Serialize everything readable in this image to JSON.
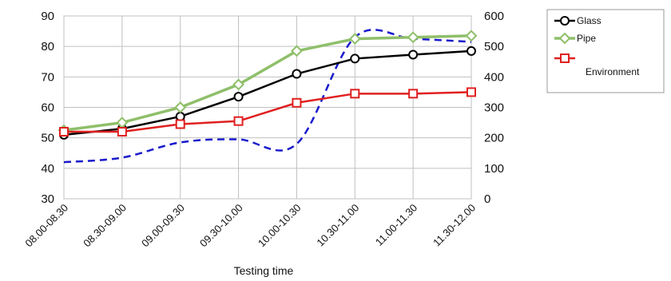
{
  "chart_data": {
    "type": "line",
    "title": "",
    "xlabel": "Testing time",
    "ylabel": "",
    "y2label": "",
    "categories": [
      "08.00-08.30",
      "08.30-09.00",
      "09.00-09.30",
      "09.30-10.00",
      "10.00-10.30",
      "10.30-11.00",
      "11.00-11.30",
      "11.30-12.00"
    ],
    "ylim": [
      30,
      90
    ],
    "yticks": [
      30,
      40,
      50,
      60,
      70,
      80,
      90
    ],
    "y2lim": [
      0,
      600
    ],
    "y2ticks": [
      0,
      100,
      200,
      300,
      400,
      500,
      600
    ],
    "grid": true,
    "legend_position": "right",
    "series": [
      {
        "name": "Glass",
        "axis": "left",
        "color": "#000000",
        "marker": "circle",
        "values": [
          51,
          53,
          57,
          63.5,
          71,
          76,
          77.3,
          78.5
        ]
      },
      {
        "name": "Pipe",
        "axis": "left",
        "color": "#8fbf6a",
        "marker": "diamond",
        "values": [
          52.5,
          55,
          60,
          67.5,
          78.5,
          82.5,
          83,
          83.5
        ]
      },
      {
        "name": "Environment",
        "axis": "left",
        "color": "#e02020",
        "marker": "square",
        "values": [
          52,
          52,
          54.5,
          55.5,
          61.5,
          64.5,
          64.5,
          65
        ]
      },
      {
        "name": "",
        "axis": "right",
        "color": "#1a1acc",
        "dashed": true,
        "values": [
          120,
          135,
          185,
          195,
          180,
          530,
          525,
          515
        ]
      }
    ]
  }
}
